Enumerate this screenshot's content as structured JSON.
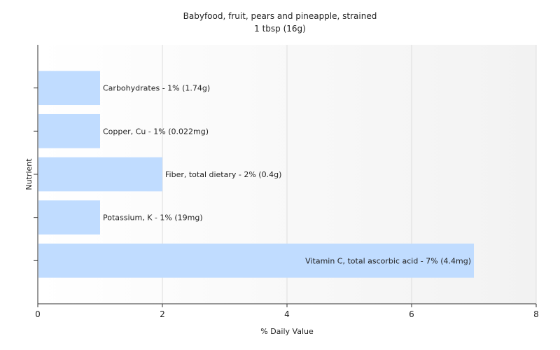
{
  "chart_data": {
    "type": "bar",
    "orientation": "horizontal",
    "title": "Babyfood, fruit, pears and pineapple, strained",
    "subtitle": "1 tbsp (16g)",
    "xlabel": "% Daily Value",
    "ylabel": "Nutrient",
    "xlim": [
      0,
      8
    ],
    "xticks": [
      "0",
      "2",
      "4",
      "6",
      "8"
    ],
    "grid": "vertical",
    "bar_color": "#c0dcff",
    "categories": [
      "Carbohydrates",
      "Copper, Cu",
      "Fiber, total dietary",
      "Potassium, K",
      "Vitamin C, total ascorbic acid"
    ],
    "values": [
      1,
      1,
      2,
      1,
      7
    ],
    "data_labels": [
      "Carbohydrates - 1% (1.74g)",
      "Copper, Cu - 1% (0.022mg)",
      "Fiber, total dietary - 2% (0.4g)",
      "Potassium, K - 1% (19mg)",
      "Vitamin C, total ascorbic acid - 7% (4.4mg)"
    ]
  }
}
